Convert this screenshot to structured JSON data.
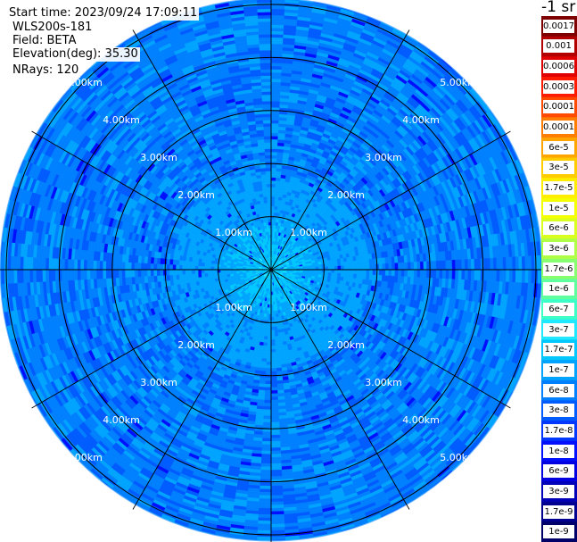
{
  "header": {
    "start_time": "Start time: 2023/09/24 17:09:11",
    "device": "WLS200s-181",
    "field": "Field: BETA",
    "elevation": "Elevation(deg): 35.30",
    "nrays": "NRays: 120"
  },
  "colorbar": {
    "unit_label": "-1 sr",
    "labels": [
      "0.0017",
      "0.001",
      "0.0006",
      "0.0003",
      "0.00017",
      "0.0001",
      "6e-5",
      "3e-5",
      "1.7e-5",
      "1e-5",
      "6e-6",
      "3e-6",
      "1.7e-6",
      "1e-6",
      "6e-7",
      "3e-7",
      "1.7e-7",
      "1e-7",
      "6e-8",
      "3e-8",
      "1.7e-8",
      "1e-8",
      "6e-9",
      "3e-9",
      "1.7e-9",
      "1e-9"
    ],
    "colors": [
      "#7f0000",
      "#b20000",
      "#e00000",
      "#ff1a00",
      "#ff4a00",
      "#ff7d00",
      "#ffa500",
      "#ffcc00",
      "#ffee00",
      "#f4ff00",
      "#d8ff1f",
      "#b0ff47",
      "#88ff6f",
      "#5fffa0",
      "#3cffc8",
      "#1fe8ff",
      "#00c8ff",
      "#00a4ff",
      "#0080ff",
      "#005cff",
      "#0038ff",
      "#0010ff",
      "#0000e0",
      "#0000b8",
      "#000090",
      "#000068"
    ]
  },
  "chart_data": {
    "type": "heatmap",
    "projection": "polar-ppi",
    "range_rings_km": [
      1,
      2,
      3,
      4,
      5
    ],
    "ring_labels": [
      "1.00km",
      "2.00km",
      "3.00km",
      "4.00km",
      "5.00km"
    ],
    "max_range_km": 5.05,
    "azimuth_lines_deg": [
      0,
      30,
      60,
      90,
      120,
      150,
      180,
      210,
      240,
      270,
      300,
      330
    ],
    "nrays": 120,
    "field": "BETA",
    "elevation_deg": 35.3,
    "value_scale": "log",
    "value_range": [
      1e-09,
      0.0017
    ],
    "dominant_value_range": [
      3e-08,
      1e-07
    ],
    "near_range_value": 2e-07
  }
}
